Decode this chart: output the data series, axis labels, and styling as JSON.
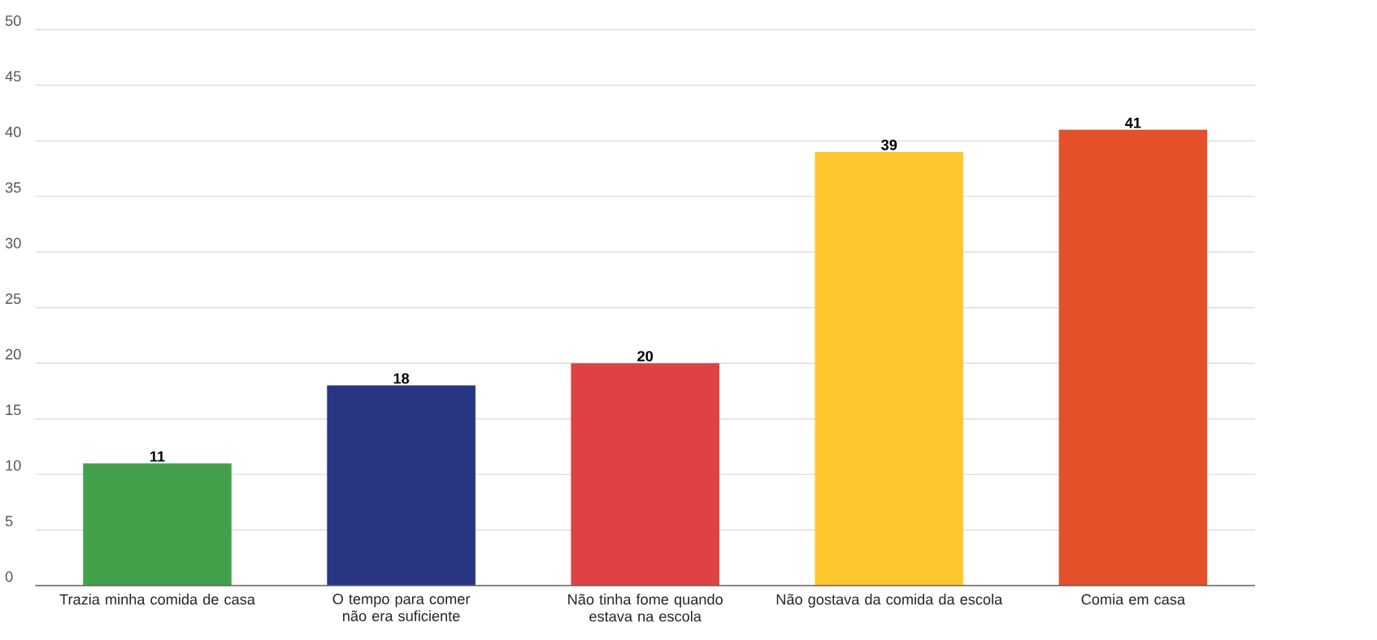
{
  "chart_data": {
    "type": "bar",
    "categories": [
      "Trazia minha comida de casa",
      "O tempo para comer não era suficiente",
      "Não tinha fome quando estava na escola",
      "Não gostava da comida da escola",
      "Comia em casa"
    ],
    "values": [
      11,
      18,
      20,
      39,
      41
    ],
    "colors": [
      "#43a04b",
      "#283583",
      "#de4242",
      "#fec72d",
      "#e4502a"
    ],
    "ylim": [
      0,
      50
    ],
    "yticks": [
      0,
      5,
      10,
      15,
      20,
      25,
      30,
      35,
      40,
      45,
      50
    ],
    "grid": "y",
    "data_labels": true
  }
}
